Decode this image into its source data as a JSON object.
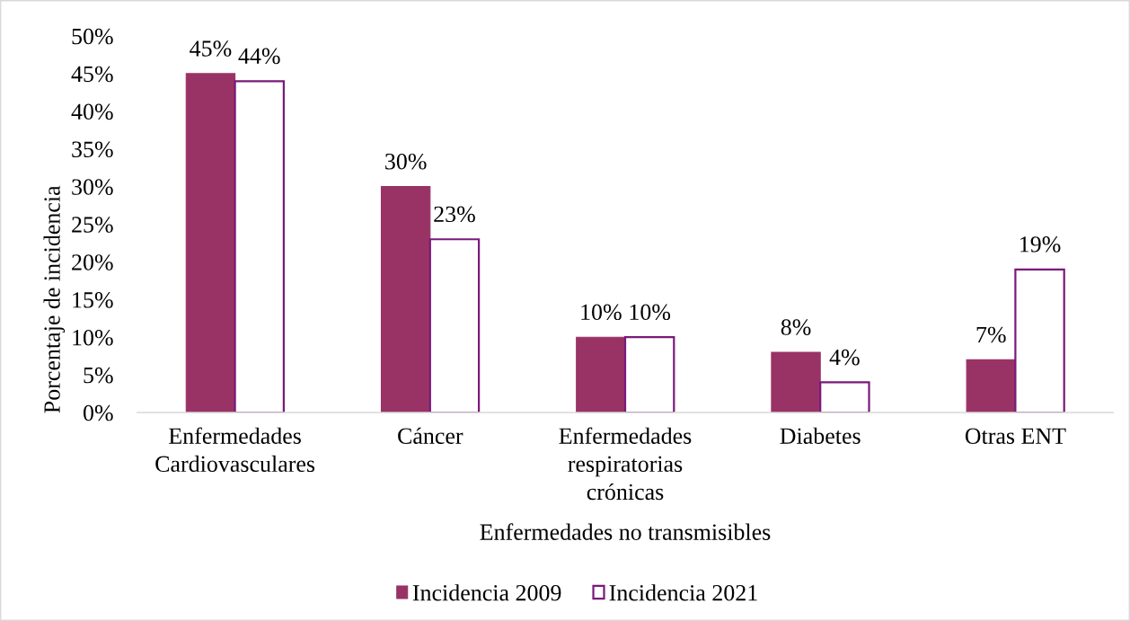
{
  "chart_data": {
    "type": "bar",
    "xlabel": "Enfermedades no transmisibles",
    "ylabel": "Porcentaje de incidencia",
    "categories": [
      "Enfermedades\nCardiovasculares",
      "Cáncer",
      "Enfermedades\nrespiratorias\ncrónicas",
      "Diabetes",
      "Otras ENT"
    ],
    "series": [
      {
        "name": "Incidencia 2009",
        "color": "#993366",
        "values": [
          45,
          30,
          10,
          8,
          7
        ],
        "value_labels": [
          "45%",
          "30%",
          "10%",
          "8%",
          "7%"
        ]
      },
      {
        "name": "Incidencia 2021",
        "color": "#7a1a7a",
        "values": [
          44,
          23,
          10,
          4,
          19
        ],
        "value_labels": [
          "44%",
          "23%",
          "10%",
          "4%",
          "19%"
        ]
      }
    ],
    "ylim": [
      0,
      50
    ],
    "yticks": [
      {
        "value": 0,
        "label": "0%"
      },
      {
        "value": 5,
        "label": "5%"
      },
      {
        "value": 10,
        "label": "10%"
      },
      {
        "value": 15,
        "label": "15%"
      },
      {
        "value": 20,
        "label": "20%"
      },
      {
        "value": 25,
        "label": "25%"
      },
      {
        "value": 30,
        "label": "30%"
      },
      {
        "value": 35,
        "label": "35%"
      },
      {
        "value": 40,
        "label": "40%"
      },
      {
        "value": 45,
        "label": "45%"
      },
      {
        "value": 50,
        "label": "50%"
      }
    ],
    "legend": "bottom"
  }
}
